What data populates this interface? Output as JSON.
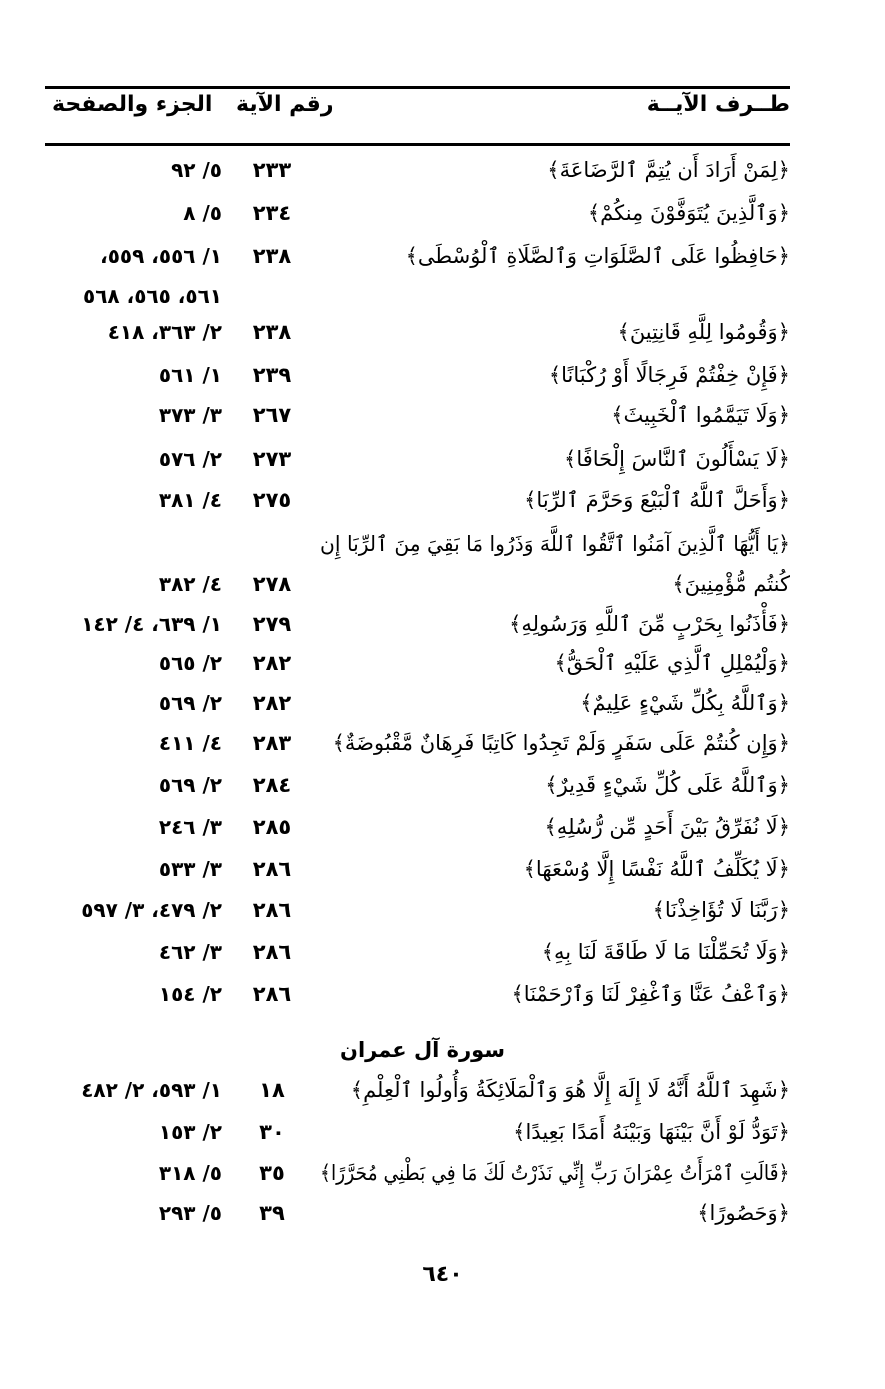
{
  "header": {
    "col_verse": "طــرف الآيــة",
    "col_ayah": "رقم الآية",
    "col_ref": "الجزء والصفحة"
  },
  "rows": [
    {
      "verse": "﴿لِمَنْ أَرَادَ أَن يُتِمَّ ٱلرَّضَاعَةَ﴾",
      "ayah": "٢٣٣",
      "ref": "٥/ ٩٢"
    },
    {
      "verse": "﴿وَٱلَّذِينَ يُتَوَفَّوْنَ مِنكُمْ﴾",
      "ayah": "٢٣٤",
      "ref": "٥/ ٨"
    },
    {
      "verse": "﴿حَافِظُوا عَلَى ٱلصَّلَوَاتِ وَٱلصَّلَاةِ ٱلْوُسْطَى﴾",
      "ayah": "٢٣٨",
      "ref": "١/ ٥٥٦، ٥٥٩،",
      "ref_cont": "٥٦١، ٥٦٥، ٥٦٨"
    },
    {
      "verse": "﴿وَقُومُوا لِلَّهِ قَانِتِينَ﴾",
      "ayah": "٢٣٨",
      "ref": "٢/ ٣٦٣، ٤١٨"
    },
    {
      "verse": "﴿فَإِنْ خِفْتُمْ فَرِجَالًا أَوْ رُكْبَانًا﴾",
      "ayah": "٢٣٩",
      "ref": "١/ ٥٦١"
    },
    {
      "verse": "﴿وَلَا تَيَمَّمُوا ٱلْخَبِيثَ﴾",
      "ayah": "٢٦٧",
      "ref": "٣/ ٣٧٣"
    },
    {
      "verse": "﴿لَا يَسْأَلُونَ ٱلنَّاسَ إِلْحَافًا﴾",
      "ayah": "٢٧٣",
      "ref": "٢/ ٥٧٦"
    },
    {
      "verse": "﴿وَأَحَلَّ ٱللَّهُ ٱلْبَيْعَ وَحَرَّمَ ٱلرِّبَا﴾",
      "ayah": "٢٧٥",
      "ref": "٤/ ٣٨١"
    },
    {
      "verse": "﴿يَا أَيُّهَا ٱلَّذِينَ آمَنُوا ٱتَّقُوا ٱللَّهَ وَذَرُوا مَا بَقِيَ مِنَ ٱلرِّبَا إِن",
      "verse_cont": "كُنتُم مُّؤْمِنِينَ﴾",
      "ayah": "٢٧٨",
      "ref": "٤/ ٣٨٢"
    },
    {
      "verse": "﴿فَأْذَنُوا بِحَرْبٍ مِّنَ ٱللَّهِ وَرَسُولِهِ﴾",
      "ayah": "٢٧٩",
      "ref": "١/ ٦٣٩، ٤/ ١٤٢"
    },
    {
      "verse": "﴿وَلْيُمْلِلِ ٱلَّذِي عَلَيْهِ ٱلْحَقُّ﴾",
      "ayah": "٢٨٢",
      "ref": "٢/ ٥٦٥"
    },
    {
      "verse": "﴿وَٱللَّهُ بِكُلِّ شَيْءٍ عَلِيمٌ﴾",
      "ayah": "٢٨٢",
      "ref": "٢/ ٥٦٩"
    },
    {
      "verse": "﴿وَإِن كُنتُمْ عَلَى سَفَرٍ وَلَمْ تَجِدُوا كَاتِبًا فَرِهَانٌ مَّقْبُوضَةٌ﴾",
      "ayah": "٢٨٣",
      "ref": "٤/ ٤١١"
    },
    {
      "verse": "﴿وَٱللَّهُ عَلَى كُلِّ شَيْءٍ قَدِيرٌ﴾",
      "ayah": "٢٨٤",
      "ref": "٢/ ٥٦٩"
    },
    {
      "verse": "﴿لَا نُفَرِّقُ بَيْنَ أَحَدٍ مِّن رُّسُلِهِ﴾",
      "ayah": "٢٨٥",
      "ref": "٣/ ٢٤٦"
    },
    {
      "verse": "﴿لَا يُكَلِّفُ ٱللَّهُ نَفْسًا إِلَّا وُسْعَهَا﴾",
      "ayah": "٢٨٦",
      "ref": "٣/ ٥٣٣"
    },
    {
      "verse": "﴿رَبَّنَا لَا تُؤَاخِذْنَا﴾",
      "ayah": "٢٨٦",
      "ref": "٢/ ٤٧٩، ٣/ ٥٩٧"
    },
    {
      "verse": "﴿وَلَا تُحَمِّلْنَا مَا لَا طَاقَةَ لَنَا بِهِ﴾",
      "ayah": "٢٨٦",
      "ref": "٣/ ٤٦٢"
    },
    {
      "verse": "﴿وَٱعْفُ عَنَّا وَٱغْفِرْ لَنَا وَٱرْحَمْنَا﴾",
      "ayah": "٢٨٦",
      "ref": "٢/ ١٥٤"
    }
  ],
  "surah_heading": "سورة آل عمران",
  "rows2": [
    {
      "verse": "﴿شَهِدَ ٱللَّهُ أَنَّهُ لَا إِلَهَ إِلَّا هُوَ وَٱلْمَلَائِكَةُ وَأُولُوا ٱلْعِلْمِ﴾",
      "ayah": "١٨",
      "ref": "١/ ٥٩٣، ٢/ ٤٨٢"
    },
    {
      "verse": "﴿تَوَدُّ لَوْ أَنَّ بَيْنَهَا وَبَيْنَهُ أَمَدًا بَعِيدًا﴾",
      "ayah": "٣٠",
      "ref": "٢/ ١٥٣"
    },
    {
      "verse": "﴿قَالَتِ ٱمْرَأَتُ عِمْرَانَ رَبِّ إِنِّي نَذَرْتُ لَكَ مَا فِي بَطْنِي مُحَرَّرًا﴾",
      "ayah": "٣٥",
      "ref": "٥/ ٣١٨"
    },
    {
      "verse": "﴿وَحَصُورًا﴾",
      "ayah": "٣٩",
      "ref": "٥/ ٢٩٣"
    }
  ],
  "page_number": "٦٤٠"
}
